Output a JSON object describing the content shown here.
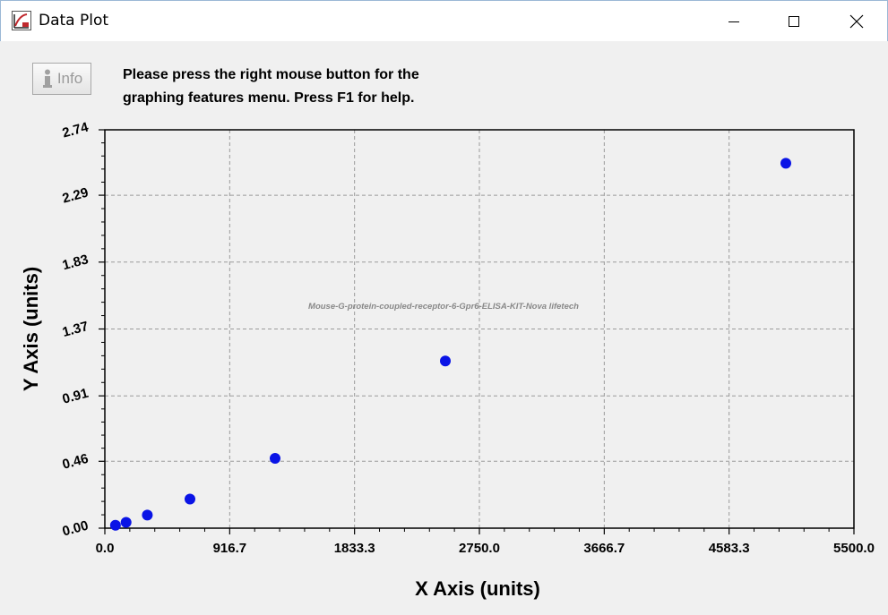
{
  "window": {
    "title": "Data Plot",
    "controls": {
      "minimize": "minimize-icon",
      "maximize": "maximize-icon",
      "close": "close-icon"
    }
  },
  "toolbar": {
    "info_label": "Info",
    "instruction_line1": "Please press the right mouse button for the",
    "instruction_line2": "graphing features menu.  Press F1 for help."
  },
  "chart_data": {
    "type": "scatter",
    "xlabel": "X Axis (units)",
    "ylabel": "Y Axis (units)",
    "xlim": [
      0,
      5500
    ],
    "ylim": [
      0,
      2.74
    ],
    "x_ticks": [
      "0.0",
      "916.7",
      "1833.3",
      "2750.0",
      "3666.7",
      "4583.3",
      "5500.0"
    ],
    "y_ticks": [
      "0.00",
      "0.46",
      "0.91",
      "1.37",
      "1.83",
      "2.29",
      "2.74"
    ],
    "x_tick_values": [
      0,
      916.7,
      1833.3,
      2750.0,
      3666.7,
      4583.3,
      5500.0
    ],
    "y_tick_values": [
      0,
      0.46,
      0.91,
      1.37,
      1.83,
      2.29,
      2.74
    ],
    "grid": true,
    "watermark": "Mouse-G-protein-coupled-receptor-6-Gpr6-ELISA-KIT-Nova lifetech",
    "point_color": "#0a14e6",
    "points": [
      {
        "x": 78,
        "y": 0.02
      },
      {
        "x": 156,
        "y": 0.04
      },
      {
        "x": 312,
        "y": 0.09
      },
      {
        "x": 625,
        "y": 0.2
      },
      {
        "x": 1250,
        "y": 0.48
      },
      {
        "x": 2500,
        "y": 1.15
      },
      {
        "x": 5000,
        "y": 2.51
      }
    ]
  }
}
